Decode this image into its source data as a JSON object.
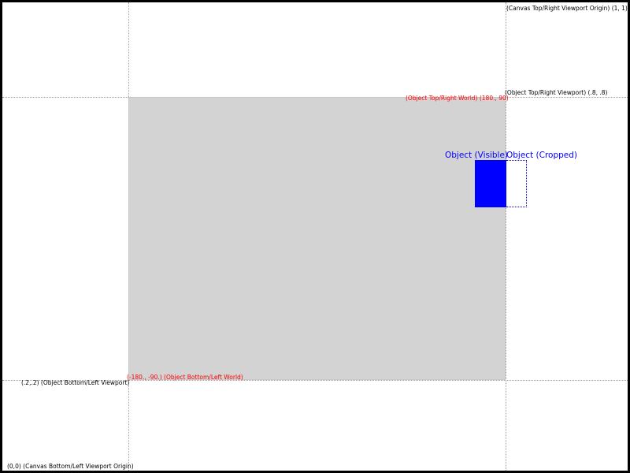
{
  "labels": {
    "canvas_top_right": "(Canvas Top/Right Viewport Origin) (1, 1)",
    "object_top_right_viewport": "(Object Top/Right Viewport) (.8, .8)",
    "object_top_right_world": "(Object Top/Right World) (180., 90)",
    "object_bottom_left_world": "(-180., -90.) (Object Bottom/Left World)",
    "object_bottom_left_viewport": "(.2,.2) (Object Bottom/Left Viewport)",
    "canvas_bottom_left": "(0,0) (Canvas Bottom/Left Viewport Origin)",
    "object_visible": "Object (Visible)",
    "object_cropped": "Object (Cropped)"
  },
  "colors": {
    "world_label": "#ff0000",
    "object": "#0000ff",
    "viewport_fill": "#d3d3d3",
    "guide_line": "#9a9a9a"
  }
}
